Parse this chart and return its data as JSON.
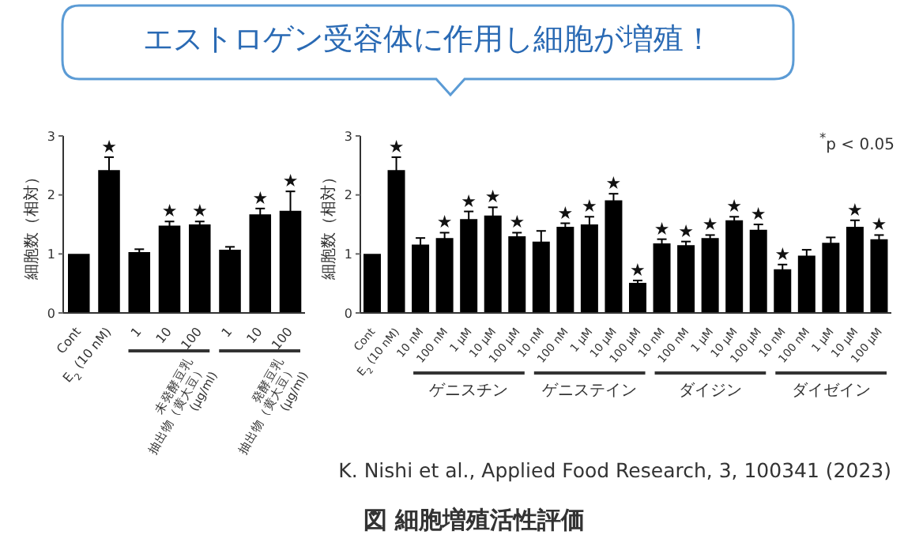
{
  "chart_data": [
    {
      "type": "bar",
      "title": "エストロゲン受容体に作用し細胞が増殖！",
      "ylabel": "細胞数（相対）",
      "categories": [
        "Cont",
        "E$_{2}$ (10 nM)",
        "1",
        "10",
        "100",
        "1",
        "10",
        "100"
      ],
      "values": [
        1.0,
        2.42,
        1.03,
        1.48,
        1.5,
        1.07,
        1.67,
        1.73
      ],
      "errors": [
        null,
        0.22,
        0.05,
        0.07,
        0.05,
        0.05,
        0.1,
        0.33
      ],
      "value_labels": [
        null,
        "★",
        null,
        "★",
        "★",
        null,
        "★",
        "★"
      ],
      "color": "#000000",
      "ylim": [
        0,
        3
      ],
      "yticks": [
        0,
        1,
        2,
        3
      ],
      "annotations": [
        "未発酵豆乳\n抽出物（黄大豆）\n(μg/ml)",
        "発酵豆乳\n抽出物（黄大豆）\n(μg/ml)"
      ]
    },
    {
      "type": "bar",
      "ylabel": "細胞数（相対）",
      "categories": [
        "Cont",
        "E$_{2}$ (10 nM)",
        "10 nM",
        "100 nM",
        "1 μM",
        "10 μM",
        "100 μM",
        "10 nM",
        "100 nM",
        "1 μM",
        "10 μM",
        "100 μM",
        "10 nM",
        "100 nM",
        "1 μM",
        "10 μM",
        "100 μM",
        "10 nM",
        "100 nM",
        "1 μM",
        "10 μM",
        "100 μM"
      ],
      "values": [
        1.0,
        2.42,
        1.16,
        1.27,
        1.59,
        1.65,
        1.3,
        1.21,
        1.46,
        1.5,
        1.91,
        0.51,
        1.18,
        1.15,
        1.27,
        1.57,
        1.41,
        0.74,
        0.97,
        1.19,
        1.46,
        1.25
      ],
      "errors": [
        null,
        0.22,
        0.11,
        0.09,
        0.13,
        0.14,
        0.06,
        0.18,
        0.06,
        0.13,
        0.11,
        0.04,
        0.07,
        0.06,
        0.05,
        0.06,
        0.09,
        0.08,
        0.1,
        0.09,
        0.11,
        0.07
      ],
      "value_labels": [
        null,
        "★",
        null,
        "★",
        "★",
        "★",
        "★",
        null,
        "★",
        "★",
        "★",
        "★",
        "★",
        "★",
        "★",
        "★",
        "★",
        "★",
        null,
        null,
        "★",
        "★"
      ],
      "color": "#000000",
      "ylim": [
        0,
        3
      ],
      "yticks": [
        0,
        1,
        2,
        3
      ],
      "annotations": [
        "ゲニスチン",
        "ゲニステイン",
        "ダイジン",
        "ダイゼイン",
        "$^{*}$p < 0.05",
        "K. Nishi et al., Applied Food Research, 3, 100341 (2023)",
        "図 細胞増殖活性評価"
      ]
    }
  ]
}
